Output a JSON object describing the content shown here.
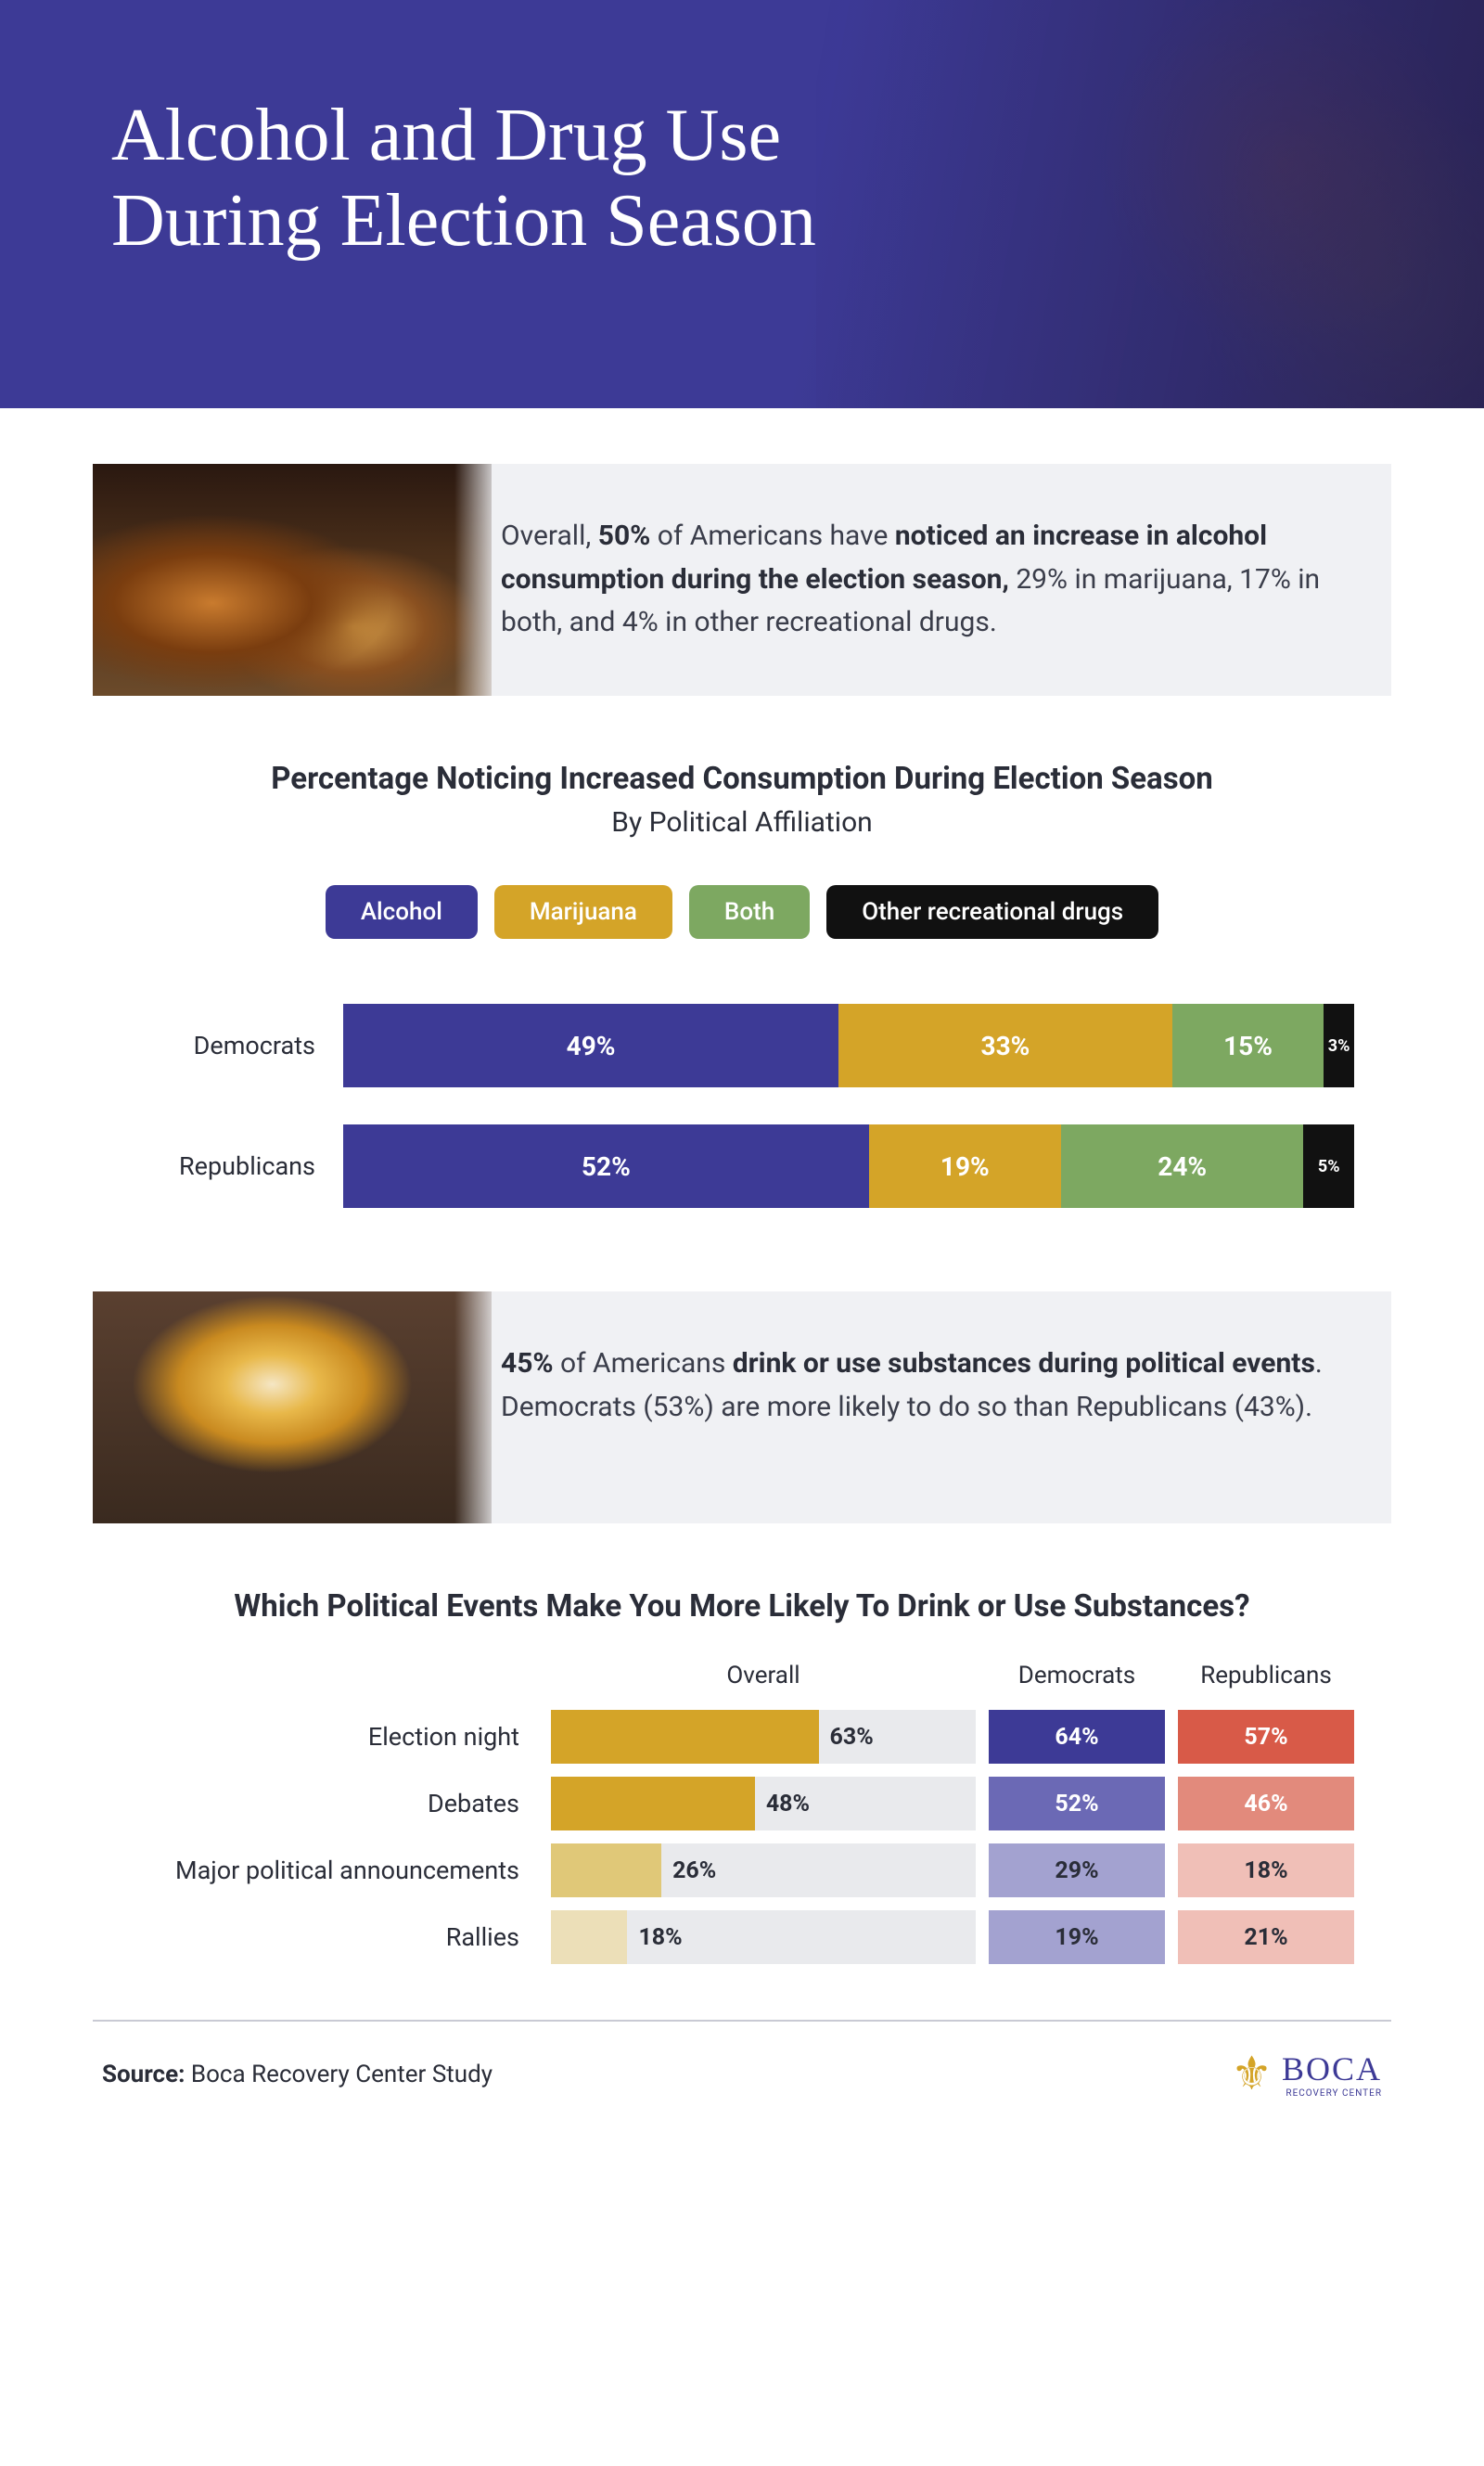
{
  "colors": {
    "purple": "#3d3a96",
    "gold": "#d4a428",
    "green": "#7da861",
    "black": "#111111",
    "dem_blue": "#3d3a96",
    "dem_blue_light": "#6b69b5",
    "dem_blue_lighter": "#a3a2d0",
    "rep_red": "#d85a48",
    "rep_red_light": "#e28a7c",
    "rep_red_lighter": "#f0bfb7",
    "gold_light": "#e0c878",
    "gold_lighter": "#ecdfb8",
    "bar_track": "#e9eaed",
    "text_dark": "#2a2d38"
  },
  "hero": {
    "title_line1": "Alcohol and Drug Use",
    "title_line2": "During Election Season"
  },
  "callout1": {
    "prefix": "Overall, ",
    "bold1": "50%",
    "mid1": " of Americans have ",
    "bold2": "noticed an increase in alcohol consumption during the election season,",
    "suffix": " 29% in marijuana, 17% in both, and 4% in other recreational drugs."
  },
  "chart1": {
    "title": "Percentage Noticing Increased Consumption During Election Season",
    "subtitle": "By Political Affiliation",
    "legend": [
      {
        "label": "Alcohol",
        "color_key": "purple"
      },
      {
        "label": "Marijuana",
        "color_key": "gold"
      },
      {
        "label": "Both",
        "color_key": "green"
      },
      {
        "label": "Other recreational drugs",
        "color_key": "black"
      }
    ],
    "rows": [
      {
        "label": "Democrats",
        "segs": [
          {
            "v": 49,
            "label": "49%",
            "color_key": "purple"
          },
          {
            "v": 33,
            "label": "33%",
            "color_key": "gold"
          },
          {
            "v": 15,
            "label": "15%",
            "color_key": "green"
          },
          {
            "v": 3,
            "label": "3%",
            "color_key": "black"
          }
        ]
      },
      {
        "label": "Republicans",
        "segs": [
          {
            "v": 52,
            "label": "52%",
            "color_key": "purple"
          },
          {
            "v": 19,
            "label": "19%",
            "color_key": "gold"
          },
          {
            "v": 24,
            "label": "24%",
            "color_key": "green"
          },
          {
            "v": 5,
            "label": "5%",
            "color_key": "black"
          }
        ]
      }
    ]
  },
  "callout2": {
    "bold1": "45%",
    "mid1": " of Americans ",
    "bold2": "drink or use substances during political events",
    "suffix": ". Democrats (53%) are more likely to do so than Republicans (43%)."
  },
  "chart2": {
    "title": "Which Political Events Make You More Likely To Drink or Use Substances?",
    "cols": {
      "overall": "Overall",
      "dem": "Democrats",
      "rep": "Republicans"
    },
    "overall_max": 100,
    "rows": [
      {
        "label": "Election night",
        "overall": 63,
        "overall_color": "gold",
        "dem": 64,
        "dem_color": "dem_blue",
        "rep": 57,
        "rep_color": "rep_red",
        "dem_text": "#ffffff",
        "rep_text": "#ffffff"
      },
      {
        "label": "Debates",
        "overall": 48,
        "overall_color": "gold",
        "dem": 52,
        "dem_color": "dem_blue_light",
        "rep": 46,
        "rep_color": "rep_red_light",
        "dem_text": "#ffffff",
        "rep_text": "#ffffff"
      },
      {
        "label": "Major political announcements",
        "overall": 26,
        "overall_color": "gold_light",
        "dem": 29,
        "dem_color": "dem_blue_lighter",
        "rep": 18,
        "rep_color": "rep_red_lighter",
        "dem_text": "#2a2d38",
        "rep_text": "#2a2d38"
      },
      {
        "label": "Rallies",
        "overall": 18,
        "overall_color": "gold_lighter",
        "dem": 19,
        "dem_color": "dem_blue_lighter",
        "rep": 21,
        "rep_color": "rep_red_lighter",
        "dem_text": "#2a2d38",
        "rep_text": "#2a2d38"
      }
    ]
  },
  "footer": {
    "source_label": "Source:",
    "source_text": " Boca Recovery Center Study",
    "brand": "BOCA",
    "tag": "RECOVERY CENTER"
  }
}
